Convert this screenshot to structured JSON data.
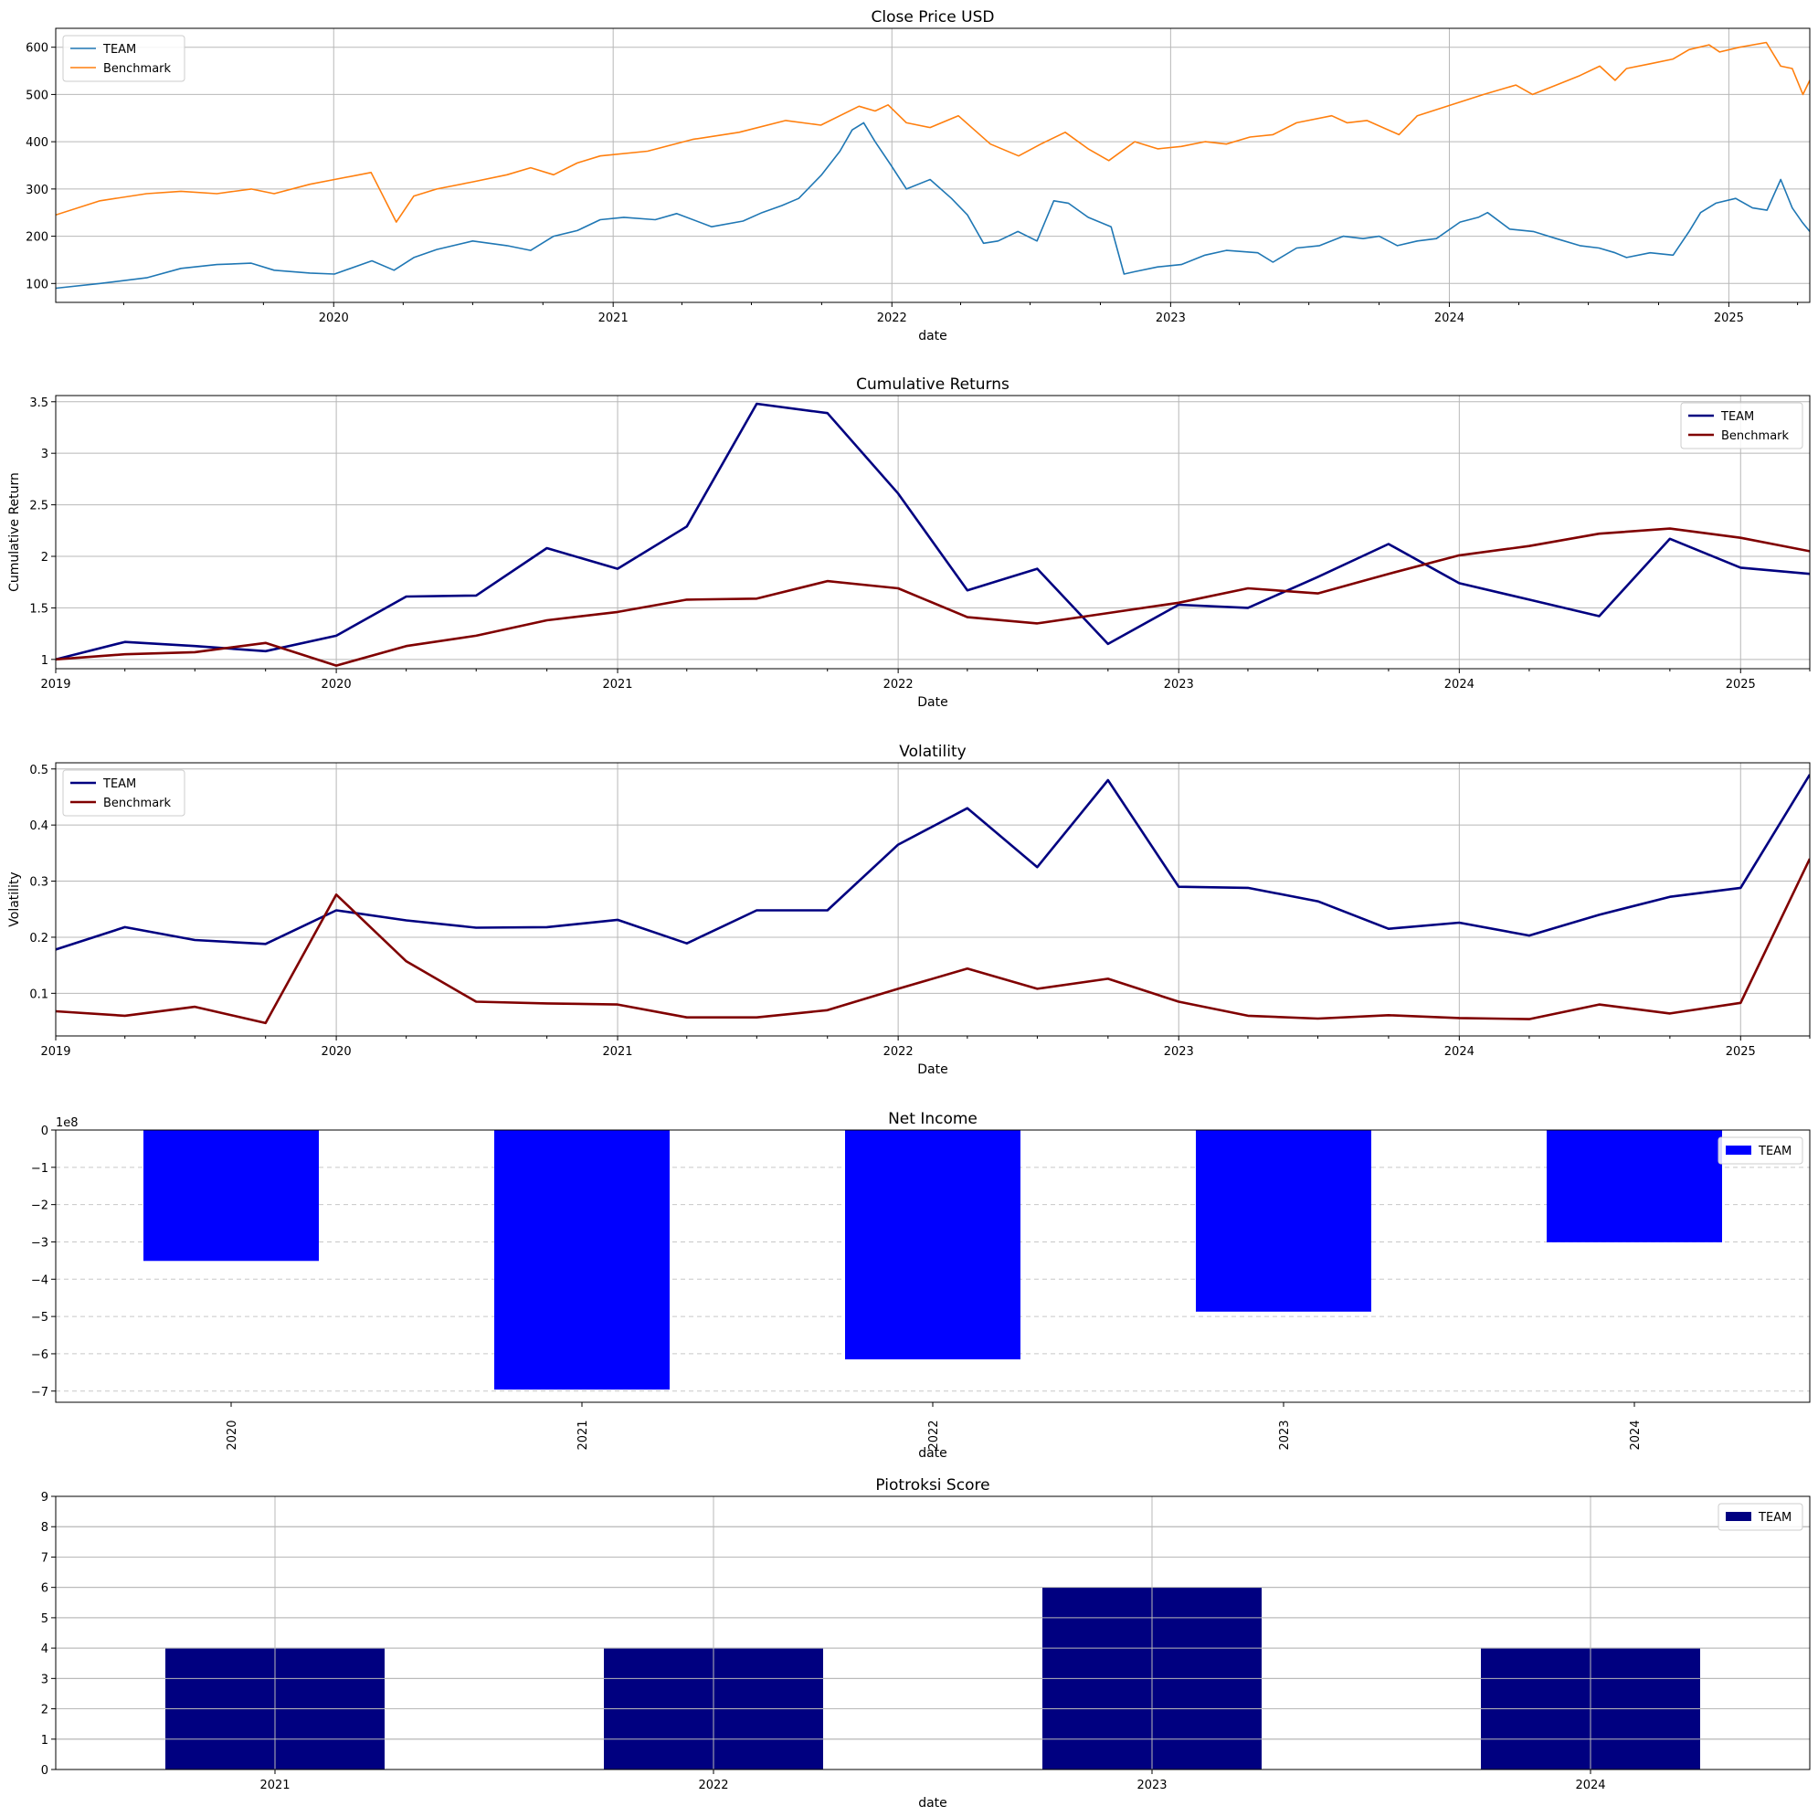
{
  "chart_data": [
    {
      "type": "line",
      "title": "Close Price USD",
      "xlabel": "date",
      "ylabel": "",
      "x_range": [
        "2019-01-02",
        "2025-04-17"
      ],
      "ylim": [
        60,
        640
      ],
      "y_ticks": [
        100,
        200,
        300,
        400,
        500,
        600
      ],
      "x_ticks": [
        "2020",
        "2021",
        "2022",
        "2023",
        "2024",
        "2025"
      ],
      "grid": true,
      "legend": "top-left",
      "series": [
        {
          "name": "TEAM",
          "color": "#1f77b4",
          "x": [
            "2019-01-02",
            "2019-03-01",
            "2019-05-01",
            "2019-06-15",
            "2019-08-01",
            "2019-09-15",
            "2019-10-15",
            "2019-12-01",
            "2020-01-02",
            "2020-02-20",
            "2020-03-20",
            "2020-04-15",
            "2020-05-15",
            "2020-07-01",
            "2020-08-15",
            "2020-09-15",
            "2020-10-15",
            "2020-11-15",
            "2020-12-15",
            "2021-01-15",
            "2021-02-25",
            "2021-03-25",
            "2021-05-10",
            "2021-06-20",
            "2021-07-15",
            "2021-08-10",
            "2021-09-01",
            "2021-10-01",
            "2021-10-25",
            "2021-11-10",
            "2021-11-25",
            "2021-12-10",
            "2021-12-31",
            "2022-01-20",
            "2022-02-20",
            "2022-03-20",
            "2022-04-10",
            "2022-05-01",
            "2022-05-20",
            "2022-06-15",
            "2022-07-10",
            "2022-08-01",
            "2022-08-20",
            "2022-09-15",
            "2022-10-15",
            "2022-11-01",
            "2022-11-15",
            "2022-12-15",
            "2023-01-15",
            "2023-02-15",
            "2023-03-15",
            "2023-04-25",
            "2023-05-15",
            "2023-06-15",
            "2023-07-15",
            "2023-08-15",
            "2023-09-10",
            "2023-10-01",
            "2023-10-25",
            "2023-11-20",
            "2023-12-15",
            "2024-01-15",
            "2024-02-08",
            "2024-02-20",
            "2024-03-20",
            "2024-04-20",
            "2024-05-20",
            "2024-06-20",
            "2024-07-15",
            "2024-08-05",
            "2024-08-20",
            "2024-09-20",
            "2024-10-20",
            "2024-11-10",
            "2024-11-25",
            "2024-12-15",
            "2025-01-10",
            "2025-02-01",
            "2025-02-20",
            "2025-03-10",
            "2025-03-25",
            "2025-04-07",
            "2025-04-17"
          ],
          "values": [
            90,
            100,
            112,
            132,
            140,
            143,
            128,
            122,
            120,
            148,
            128,
            155,
            172,
            190,
            180,
            170,
            200,
            212,
            235,
            240,
            235,
            248,
            220,
            232,
            250,
            265,
            280,
            330,
            380,
            425,
            440,
            400,
            350,
            300,
            320,
            280,
            245,
            185,
            190,
            210,
            190,
            275,
            270,
            240,
            220,
            120,
            125,
            135,
            140,
            160,
            170,
            165,
            145,
            175,
            180,
            200,
            195,
            200,
            180,
            190,
            195,
            230,
            240,
            250,
            215,
            210,
            195,
            180,
            175,
            165,
            155,
            165,
            160,
            210,
            250,
            270,
            280,
            260,
            255,
            320,
            260,
            230,
            210
          ]
        },
        {
          "name": "Benchmark",
          "color": "#ff7f0e",
          "x": [
            "2019-01-02",
            "2019-03-01",
            "2019-05-01",
            "2019-06-15",
            "2019-08-01",
            "2019-09-15",
            "2019-10-15",
            "2019-12-01",
            "2020-01-02",
            "2020-02-19",
            "2020-03-23",
            "2020-04-15",
            "2020-05-15",
            "2020-07-01",
            "2020-08-15",
            "2020-09-15",
            "2020-10-15",
            "2020-11-15",
            "2020-12-15",
            "2021-02-15",
            "2021-04-15",
            "2021-06-15",
            "2021-08-15",
            "2021-09-30",
            "2021-11-19",
            "2021-12-10",
            "2021-12-27",
            "2022-01-20",
            "2022-02-20",
            "2022-03-29",
            "2022-05-10",
            "2022-06-16",
            "2022-07-15",
            "2022-08-16",
            "2022-09-15",
            "2022-10-12",
            "2022-11-15",
            "2022-12-15",
            "2023-01-15",
            "2023-02-15",
            "2023-03-15",
            "2023-04-15",
            "2023-05-15",
            "2023-06-15",
            "2023-07-31",
            "2023-08-20",
            "2023-09-15",
            "2023-10-27",
            "2023-11-20",
            "2023-12-29",
            "2024-02-15",
            "2024-03-28",
            "2024-04-19",
            "2024-05-20",
            "2024-06-20",
            "2024-07-16",
            "2024-08-05",
            "2024-08-20",
            "2024-09-20",
            "2024-10-20",
            "2024-11-10",
            "2024-12-06",
            "2024-12-20",
            "2025-01-15",
            "2025-02-19",
            "2025-03-10",
            "2025-03-25",
            "2025-04-08",
            "2025-04-17"
          ],
          "values": [
            245,
            275,
            290,
            295,
            290,
            300,
            290,
            310,
            320,
            335,
            230,
            285,
            300,
            315,
            330,
            345,
            330,
            355,
            370,
            380,
            405,
            420,
            445,
            435,
            475,
            465,
            478,
            440,
            430,
            455,
            395,
            370,
            395,
            420,
            385,
            360,
            400,
            385,
            390,
            400,
            395,
            410,
            415,
            440,
            455,
            440,
            445,
            415,
            455,
            475,
            500,
            520,
            500,
            520,
            540,
            560,
            530,
            555,
            565,
            575,
            595,
            605,
            590,
            600,
            610,
            560,
            555,
            500,
            530
          ]
        }
      ]
    },
    {
      "type": "line",
      "title": "Cumulative Returns",
      "xlabel": "Date",
      "ylabel": "Cumulative Return",
      "x_range": [
        "2019-01-01",
        "2025-04-01"
      ],
      "ylim": [
        0.91,
        3.56
      ],
      "y_ticks": [
        1.0,
        1.5,
        2.0,
        2.5,
        3.0,
        3.5
      ],
      "x_ticks": [
        "2019",
        "2020",
        "2021",
        "2022",
        "2023",
        "2024",
        "2025"
      ],
      "grid": true,
      "legend": "top-right",
      "series": [
        {
          "name": "TEAM",
          "color": "#000080",
          "x": [
            "2019-01-01",
            "2019-04-01",
            "2019-07-01",
            "2019-10-01",
            "2020-01-01",
            "2020-04-01",
            "2020-07-01",
            "2020-10-01",
            "2021-01-01",
            "2021-04-01",
            "2021-07-01",
            "2021-10-01",
            "2022-01-01",
            "2022-04-01",
            "2022-07-01",
            "2022-10-01",
            "2023-01-01",
            "2023-04-01",
            "2023-07-01",
            "2023-10-01",
            "2024-01-01",
            "2024-04-01",
            "2024-07-01",
            "2024-10-01",
            "2025-01-01",
            "2025-04-01"
          ],
          "values": [
            1.0,
            1.17,
            1.13,
            1.08,
            1.23,
            1.61,
            1.62,
            2.08,
            1.88,
            2.29,
            3.48,
            3.39,
            2.61,
            1.67,
            1.88,
            1.15,
            1.53,
            1.5,
            1.8,
            2.12,
            1.74,
            1.58,
            1.42,
            2.17,
            1.89,
            1.83
          ]
        },
        {
          "name": "Benchmark",
          "color": "#800000",
          "x": [
            "2019-01-01",
            "2019-04-01",
            "2019-07-01",
            "2019-10-01",
            "2020-01-01",
            "2020-04-01",
            "2020-07-01",
            "2020-10-01",
            "2021-01-01",
            "2021-04-01",
            "2021-07-01",
            "2021-10-01",
            "2022-01-01",
            "2022-04-01",
            "2022-07-01",
            "2022-10-01",
            "2023-01-01",
            "2023-04-01",
            "2023-07-01",
            "2023-10-01",
            "2024-01-01",
            "2024-04-01",
            "2024-07-01",
            "2024-10-01",
            "2025-01-01",
            "2025-04-01"
          ],
          "values": [
            1.0,
            1.05,
            1.07,
            1.16,
            0.94,
            1.13,
            1.23,
            1.38,
            1.46,
            1.58,
            1.59,
            1.76,
            1.69,
            1.41,
            1.35,
            1.45,
            1.55,
            1.69,
            1.64,
            1.83,
            2.01,
            2.1,
            2.22,
            2.27,
            2.18,
            2.05
          ]
        }
      ]
    },
    {
      "type": "line",
      "title": "Volatility",
      "xlabel": "Date",
      "ylabel": "Volatility",
      "x_range": [
        "2019-01-01",
        "2025-04-01"
      ],
      "ylim": [
        0.024,
        0.511
      ],
      "y_ticks": [
        0.1,
        0.2,
        0.3,
        0.4,
        0.5
      ],
      "x_ticks": [
        "2019",
        "2020",
        "2021",
        "2022",
        "2023",
        "2024",
        "2025"
      ],
      "grid": true,
      "legend": "top-left",
      "series": [
        {
          "name": "TEAM",
          "color": "#000080",
          "x": [
            "2019-01-01",
            "2019-04-01",
            "2019-07-01",
            "2019-10-01",
            "2020-01-01",
            "2020-04-01",
            "2020-07-01",
            "2020-10-01",
            "2021-01-01",
            "2021-04-01",
            "2021-07-01",
            "2021-10-01",
            "2022-01-01",
            "2022-04-01",
            "2022-07-01",
            "2022-10-01",
            "2023-01-01",
            "2023-04-01",
            "2023-07-01",
            "2023-10-01",
            "2024-01-01",
            "2024-04-01",
            "2024-07-01",
            "2024-10-01",
            "2025-01-01",
            "2025-04-01"
          ],
          "values": [
            0.178,
            0.218,
            0.195,
            0.188,
            0.248,
            0.23,
            0.217,
            0.218,
            0.231,
            0.189,
            0.248,
            0.248,
            0.365,
            0.43,
            0.325,
            0.48,
            0.29,
            0.288,
            0.264,
            0.215,
            0.226,
            0.203,
            0.24,
            0.272,
            0.288,
            0.49
          ]
        },
        {
          "name": "Benchmark",
          "color": "#800000",
          "x": [
            "2019-01-01",
            "2019-04-01",
            "2019-07-01",
            "2019-10-01",
            "2020-01-01",
            "2020-04-01",
            "2020-07-01",
            "2020-10-01",
            "2021-01-01",
            "2021-04-01",
            "2021-07-01",
            "2021-10-01",
            "2022-01-01",
            "2022-04-01",
            "2022-07-01",
            "2022-10-01",
            "2023-01-01",
            "2023-04-01",
            "2023-07-01",
            "2023-10-01",
            "2024-01-01",
            "2024-04-01",
            "2024-07-01",
            "2024-10-01",
            "2025-01-01",
            "2025-04-01"
          ],
          "values": [
            0.068,
            0.06,
            0.076,
            0.047,
            0.276,
            0.157,
            0.085,
            0.082,
            0.08,
            0.057,
            0.057,
            0.07,
            0.108,
            0.144,
            0.108,
            0.126,
            0.085,
            0.06,
            0.055,
            0.061,
            0.056,
            0.054,
            0.08,
            0.064,
            0.083,
            0.34
          ]
        }
      ]
    },
    {
      "type": "bar",
      "title": "Net Income",
      "xlabel": "date",
      "ylabel": "",
      "offset_label": "1e8",
      "categories": [
        "2020",
        "2021",
        "2022",
        "2023",
        "2024"
      ],
      "series": [
        {
          "name": "TEAM",
          "color": "#0000ff",
          "values": [
            -3.51,
            -6.96,
            -6.15,
            -4.87,
            -3.01
          ]
        }
      ],
      "ylim": [
        -7.3,
        0.0
      ],
      "y_ticks": [
        0,
        -1,
        -2,
        -3,
        -4,
        -5,
        -6,
        -7
      ],
      "y_tick_labels": [
        "0",
        "−1",
        "−2",
        "−3",
        "−4",
        "−5",
        "−6",
        "−7"
      ],
      "grid": "y-dashed",
      "legend": "top-right"
    },
    {
      "type": "bar",
      "title": "Piotroksi Score",
      "xlabel": "date",
      "ylabel": "",
      "categories": [
        "2021",
        "2022",
        "2023",
        "2024"
      ],
      "series": [
        {
          "name": "TEAM",
          "color": "#000080",
          "values": [
            4,
            4,
            6,
            4
          ]
        }
      ],
      "ylim": [
        0,
        9
      ],
      "y_ticks": [
        0,
        1,
        2,
        3,
        4,
        5,
        6,
        7,
        8,
        9
      ],
      "grid": true,
      "legend": "top-right"
    }
  ]
}
